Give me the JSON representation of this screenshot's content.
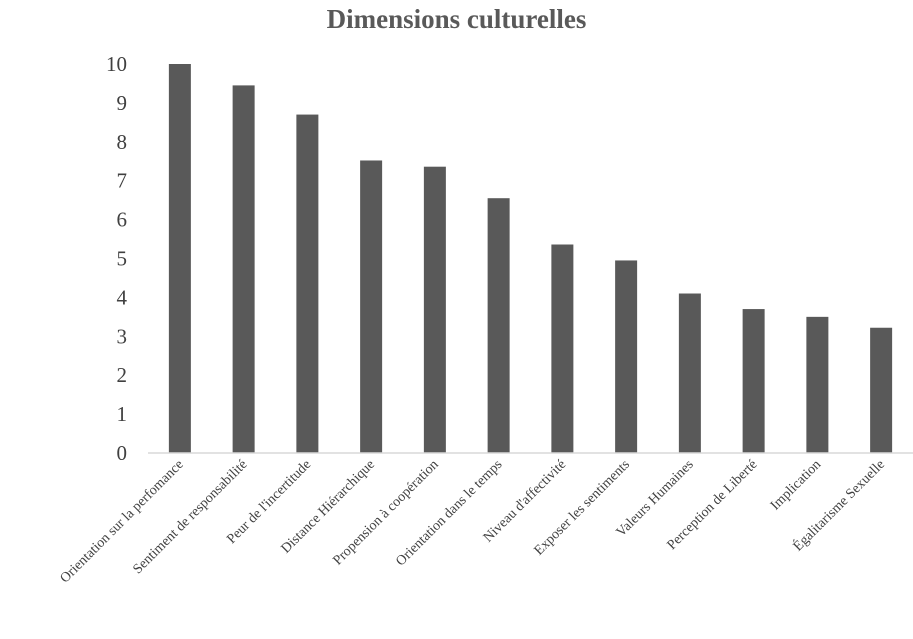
{
  "chart_data": {
    "type": "bar",
    "title": "Dimensions culturelles",
    "xlabel": "",
    "ylabel": "",
    "ylim": [
      0,
      10
    ],
    "yticks": [
      0,
      1,
      2,
      3,
      4,
      5,
      6,
      7,
      8,
      9,
      10
    ],
    "grid": false,
    "legend": "none",
    "bar_color": "#595959",
    "categories": [
      "Orientation sur la perfomance",
      "Sentiment de responsabilité",
      "Peur de l'incertitude",
      "Distance Hiérarchique",
      "Propension à coopération",
      "Orientation dans le temps",
      "Niveau d'affectivité",
      "Exposer les sentiments",
      "Valeurs Humaines",
      "Perception de Liberté",
      "Implication",
      "Égalitarisme Sexuelle"
    ],
    "values": [
      10,
      9.45,
      8.7,
      7.52,
      7.36,
      6.55,
      5.36,
      4.95,
      4.1,
      3.7,
      3.5,
      3.22
    ]
  }
}
